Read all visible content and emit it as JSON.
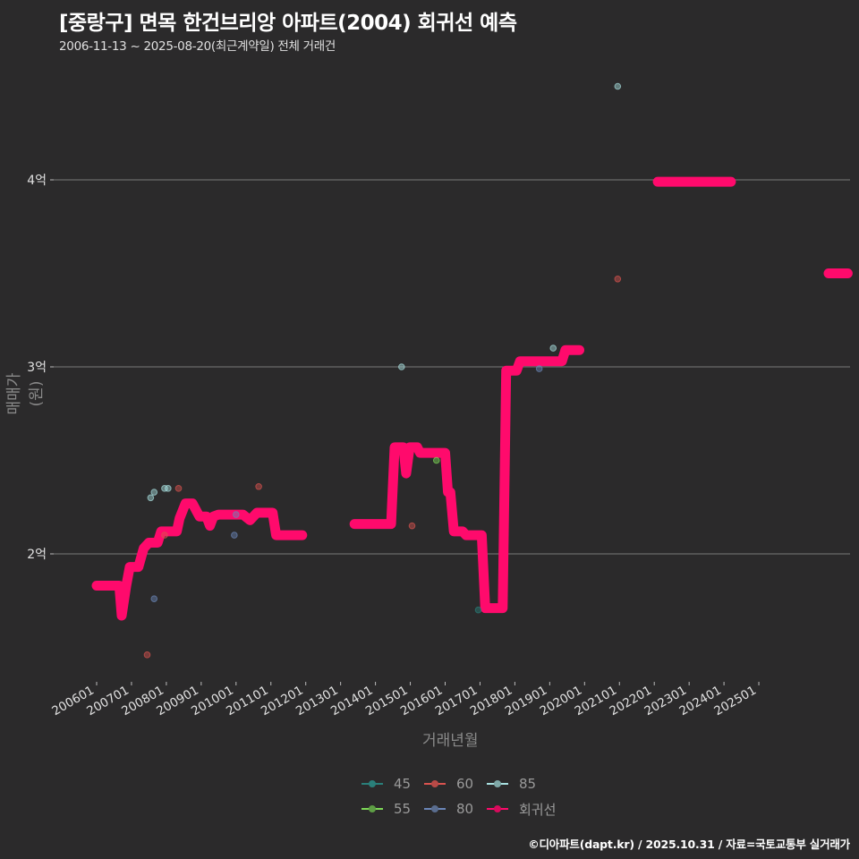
{
  "header": {
    "title": "[중랑구] 면목 한건브리앙 아파트(2004) 회귀선 예측",
    "subtitle": "2006-11-13 ~ 2025-08-20(최근계약일) 전체 거래건"
  },
  "axes": {
    "ylabel": "매매가(원)",
    "xlabel": "거래년월"
  },
  "legend": {
    "items": [
      {
        "label": "45",
        "color": "#2a7f7a"
      },
      {
        "label": "60",
        "color": "#d9534f"
      },
      {
        "label": "85",
        "color": "#a8e0e0"
      },
      {
        "label": "55",
        "color": "#7ed957"
      },
      {
        "label": "80",
        "color": "#6b86b8"
      },
      {
        "label": "회귀선",
        "color": "#ff0a6c"
      }
    ]
  },
  "footer": {
    "credit": "©디아파트(dapt.kr) / 2025.10.31 / 자료=국토교통부 실거래가"
  },
  "colors": {
    "background": "#2b2a2b",
    "grid": "#7a7a7a",
    "regression": "#ff0a6c"
  },
  "chart_data": {
    "type": "scatter",
    "title": "[중랑구] 면목 한건브리앙 아파트(2004) 회귀선 예측",
    "subtitle": "2006-11-13 ~ 2025-08-20(최근계약일) 전체 거래건",
    "xlabel": "거래년월",
    "ylabel": "매매가(원)",
    "x_ticks": [
      "200601",
      "200701",
      "200801",
      "200901",
      "201001",
      "201101",
      "201201",
      "201301",
      "201401",
      "201501",
      "201601",
      "201701",
      "201801",
      "201901",
      "202001",
      "202101",
      "202201",
      "202301",
      "202401",
      "202501"
    ],
    "y_ticks": [
      {
        "value": 2.0,
        "label": "2억"
      },
      {
        "value": 3.0,
        "label": "3억"
      },
      {
        "value": 4.0,
        "label": "4억"
      }
    ],
    "ylim": [
      1.35,
      4.95
    ],
    "xlim": [
      2004.75,
      2027.65
    ],
    "grid": "horizontal",
    "legend_position": "bottom",
    "series": [
      {
        "name": "45",
        "color": "#2a7f7a",
        "points": [
          [
            2016.95,
            1.7
          ]
        ]
      },
      {
        "name": "55",
        "color": "#7ed957",
        "points": [
          [
            2015.75,
            2.5
          ]
        ]
      },
      {
        "name": "60",
        "color": "#d9534f",
        "points": [
          [
            2007.45,
            1.46
          ],
          [
            2007.95,
            2.1
          ],
          [
            2008.35,
            2.35
          ],
          [
            2010.65,
            2.36
          ],
          [
            2015.05,
            2.15
          ],
          [
            2020.95,
            3.47
          ]
        ]
      },
      {
        "name": "80",
        "color": "#6b86b8",
        "points": [
          [
            2007.65,
            1.76
          ],
          [
            2009.95,
            2.1
          ],
          [
            2010.0,
            2.21
          ],
          [
            2018.7,
            2.99
          ]
        ]
      },
      {
        "name": "85",
        "color": "#a8e0e0",
        "points": [
          [
            2007.55,
            2.3
          ],
          [
            2007.65,
            2.33
          ],
          [
            2007.95,
            2.35
          ],
          [
            2008.05,
            2.35
          ],
          [
            2014.75,
            3.0
          ],
          [
            2019.1,
            3.1
          ],
          [
            2020.95,
            4.5
          ]
        ]
      },
      {
        "name": "회귀선",
        "color": "#ff0a6c",
        "segments": [
          [
            [
              2006.0,
              1.83
            ],
            [
              2006.4,
              1.83
            ],
            [
              2006.65,
              1.83
            ],
            [
              2006.72,
              1.67
            ],
            [
              2006.85,
              1.83
            ],
            [
              2006.95,
              1.93
            ],
            [
              2007.2,
              1.93
            ],
            [
              2007.35,
              2.03
            ],
            [
              2007.5,
              2.06
            ],
            [
              2007.75,
              2.06
            ],
            [
              2007.85,
              2.12
            ],
            [
              2008.3,
              2.12
            ],
            [
              2008.38,
              2.19
            ],
            [
              2008.55,
              2.27
            ],
            [
              2008.75,
              2.27
            ],
            [
              2008.95,
              2.2
            ],
            [
              2009.15,
              2.2
            ],
            [
              2009.25,
              2.15
            ],
            [
              2009.35,
              2.2
            ],
            [
              2009.5,
              2.21
            ],
            [
              2010.0,
              2.21
            ],
            [
              2010.2,
              2.21
            ],
            [
              2010.4,
              2.18
            ],
            [
              2010.6,
              2.22
            ],
            [
              2011.05,
              2.22
            ],
            [
              2011.15,
              2.1
            ],
            [
              2011.9,
              2.1
            ]
          ],
          [
            [
              2013.4,
              2.16
            ],
            [
              2014.45,
              2.16
            ],
            [
              2014.55,
              2.57
            ],
            [
              2014.8,
              2.57
            ],
            [
              2014.88,
              2.43
            ],
            [
              2014.98,
              2.57
            ],
            [
              2015.2,
              2.57
            ],
            [
              2015.28,
              2.54
            ],
            [
              2016.0,
              2.54
            ],
            [
              2016.08,
              2.33
            ],
            [
              2016.15,
              2.33
            ],
            [
              2016.25,
              2.12
            ],
            [
              2016.5,
              2.12
            ],
            [
              2016.6,
              2.1
            ],
            [
              2017.05,
              2.1
            ],
            [
              2017.15,
              1.71
            ],
            [
              2017.65,
              1.71
            ],
            [
              2017.75,
              2.98
            ],
            [
              2018.05,
              2.98
            ],
            [
              2018.15,
              3.03
            ],
            [
              2019.35,
              3.03
            ],
            [
              2019.45,
              3.09
            ],
            [
              2019.85,
              3.09
            ]
          ],
          [
            [
              2022.1,
              3.99
            ],
            [
              2024.2,
              3.99
            ]
          ],
          [
            [
              2027.0,
              3.5
            ],
            [
              2027.55,
              3.5
            ]
          ]
        ]
      }
    ]
  }
}
